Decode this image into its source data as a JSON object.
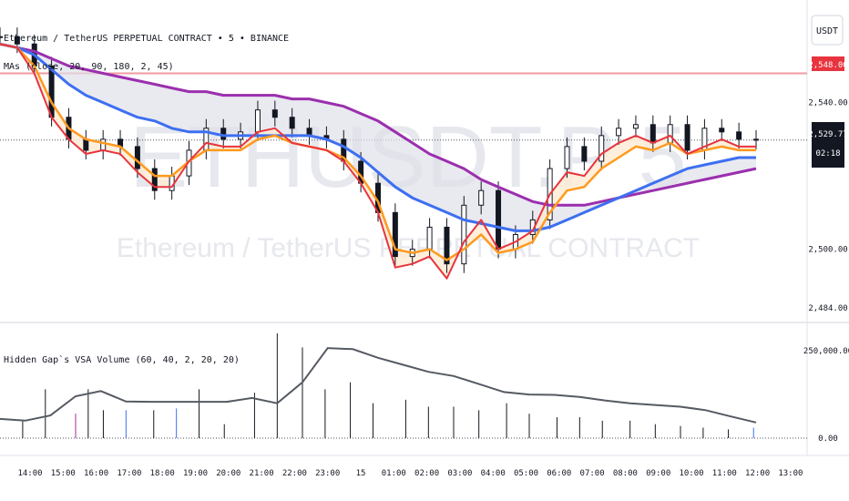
{
  "header": {
    "symbol_line": "Ethereum / TetherUS PERPETUAL CONTRACT • 5 • BINANCE",
    "indicator_line": "MAs (close, 20, 90, 180, 2, 45)",
    "currency_button": "USDT"
  },
  "watermark": {
    "ticker": "ETHUSDT.P 5",
    "name": "Ethereum / TetherUS PERPETUAL CONTRACT"
  },
  "price_badges": {
    "resistance": "2,548.00",
    "last_price": "2,529.77",
    "countdown": "02:18"
  },
  "volume_pane": {
    "title": "Hidden Gap`s VSA Volume (60, 40, 2, 20, 20)"
  },
  "colors": {
    "ma_fast": "#e8343e",
    "ma_mid": "#ff9a1f",
    "ma_slow": "#3d6ff0",
    "ma_long": "#9b2fae",
    "resistance_line": "#f29aa0",
    "volume_ma": "#555a63",
    "candle": "#131722"
  },
  "chart_data": [
    {
      "type": "line",
      "name": "price-pane",
      "x": [
        "13:45",
        "14:00",
        "14:30",
        "15:00",
        "15:30",
        "16:00",
        "16:30",
        "17:00",
        "17:30",
        "18:00",
        "18:30",
        "19:00",
        "19:30",
        "20:00",
        "20:30",
        "21:00",
        "21:30",
        "22:00",
        "22:30",
        "23:00",
        "23:30",
        "00:00",
        "00:30",
        "01:00",
        "01:30",
        "02:00",
        "02:30",
        "03:00",
        "03:30",
        "04:00",
        "04:30",
        "05:00",
        "05:30",
        "06:00",
        "06:30",
        "07:00",
        "07:30",
        "08:00",
        "08:30",
        "09:00",
        "09:30",
        "10:00",
        "10:30",
        "11:00",
        "11:30"
      ],
      "series": [
        {
          "key": "close",
          "values": [
            2558,
            2556,
            2550,
            2536,
            2530,
            2527,
            2530,
            2528,
            2522,
            2516,
            2520,
            2527,
            2533,
            2530,
            2532,
            2538,
            2536,
            2533,
            2531,
            2530,
            2524,
            2518,
            2510,
            2498,
            2500,
            2506,
            2496,
            2512,
            2516,
            2500,
            2504,
            2508,
            2522,
            2528,
            2524,
            2531,
            2533,
            2534,
            2529,
            2534,
            2527,
            2533,
            2532,
            2530,
            2529.77
          ]
        },
        {
          "key": "ma_fast",
          "values": [
            2556,
            2555,
            2548,
            2536,
            2530,
            2526,
            2527,
            2526,
            2521,
            2517,
            2517,
            2524,
            2529,
            2528,
            2528,
            2532,
            2533,
            2529,
            2528,
            2527,
            2524,
            2518,
            2510,
            2495,
            2496,
            2498,
            2492,
            2502,
            2508,
            2500,
            2502,
            2505,
            2515,
            2521,
            2520,
            2526,
            2529,
            2531,
            2529,
            2531,
            2526,
            2528,
            2530,
            2528,
            2528
          ]
        },
        {
          "key": "ma_mid",
          "values": [
            2556,
            2555,
            2550,
            2540,
            2533,
            2530,
            2529,
            2528,
            2524,
            2520,
            2520,
            2524,
            2527,
            2527,
            2527,
            2530,
            2531,
            2529,
            2528,
            2527,
            2525,
            2520,
            2513,
            2500,
            2499,
            2500,
            2497,
            2500,
            2504,
            2499,
            2500,
            2502,
            2510,
            2516,
            2517,
            2522,
            2525,
            2528,
            2527,
            2529,
            2526,
            2527,
            2528,
            2527,
            2527
          ]
        },
        {
          "key": "ma_slow",
          "values": [
            2556,
            2555,
            2553,
            2549,
            2545,
            2542,
            2540,
            2538,
            2536,
            2535,
            2533,
            2532,
            2532,
            2531,
            2531,
            2531,
            2531,
            2531,
            2531,
            2530,
            2528,
            2525,
            2521,
            2517,
            2514,
            2512,
            2510,
            2508,
            2507,
            2506,
            2505,
            2505,
            2506,
            2508,
            2510,
            2512,
            2514,
            2516,
            2518,
            2520,
            2522,
            2523,
            2524,
            2525,
            2525
          ]
        },
        {
          "key": "ma_long",
          "values": [
            2556,
            2555,
            2554,
            2552,
            2550,
            2549,
            2548,
            2547,
            2546,
            2545,
            2544,
            2543,
            2543,
            2542,
            2542,
            2542,
            2542,
            2541,
            2541,
            2540,
            2539,
            2537,
            2535,
            2532,
            2529,
            2526,
            2524,
            2522,
            2519,
            2517,
            2515,
            2513,
            2512,
            2512,
            2512,
            2513,
            2514,
            2515,
            2516,
            2517,
            2518,
            2519,
            2520,
            2521,
            2522
          ]
        }
      ],
      "resistance": 2548,
      "ylim": [
        2481,
        2568
      ],
      "y_ticks": [
        "2,540.00",
        "2,500.00",
        "2,484.00"
      ],
      "x_ticks": [
        "14:00",
        "15:00",
        "16:00",
        "17:00",
        "18:00",
        "19:00",
        "20:00",
        "21:00",
        "22:00",
        "23:00",
        "15",
        "01:00",
        "02:00",
        "03:00",
        "04:00",
        "05:00",
        "06:00",
        "07:00",
        "08:00",
        "09:00",
        "10:00",
        "11:00",
        "12:00",
        "13:00"
      ]
    },
    {
      "type": "bar",
      "name": "volume-pane",
      "y_ticks": [
        "250,000.00",
        "0.00"
      ],
      "ylim": [
        0,
        300000
      ],
      "volume_ma": [
        [
          0,
          55000
        ],
        [
          1,
          50000
        ],
        [
          2,
          65000
        ],
        [
          3,
          120000
        ],
        [
          4,
          135000
        ],
        [
          5,
          105000
        ],
        [
          6,
          104000
        ],
        [
          7,
          104000
        ],
        [
          8,
          104000
        ],
        [
          9,
          104000
        ],
        [
          10,
          115000
        ],
        [
          11,
          100000
        ],
        [
          12,
          160000
        ],
        [
          13,
          258000
        ],
        [
          14,
          255000
        ],
        [
          15,
          230000
        ],
        [
          16,
          210000
        ],
        [
          17,
          190000
        ],
        [
          18,
          178000
        ],
        [
          19,
          155000
        ],
        [
          20,
          132000
        ],
        [
          21,
          125000
        ],
        [
          22,
          124000
        ],
        [
          23,
          118000
        ],
        [
          24,
          108000
        ],
        [
          25,
          100000
        ],
        [
          26,
          95000
        ],
        [
          27,
          90000
        ],
        [
          28,
          80000
        ],
        [
          29,
          62000
        ],
        [
          30,
          45000
        ]
      ],
      "spikes": [
        {
          "at": 0.9,
          "value": 48000,
          "color": "#131722"
        },
        {
          "at": 1.8,
          "value": 140000,
          "color": "#131722"
        },
        {
          "at": 3.0,
          "value": 70000,
          "color": "#a12c9a"
        },
        {
          "at": 3.5,
          "value": 140000,
          "color": "#131722"
        },
        {
          "at": 4.1,
          "value": 80000,
          "color": "#131722"
        },
        {
          "at": 5.0,
          "value": 80000,
          "color": "#3d6ff0"
        },
        {
          "at": 6.1,
          "value": 80000,
          "color": "#131722"
        },
        {
          "at": 7.0,
          "value": 85000,
          "color": "#3d6ff0"
        },
        {
          "at": 7.9,
          "value": 140000,
          "color": "#131722"
        },
        {
          "at": 8.9,
          "value": 40000,
          "color": "#131722"
        },
        {
          "at": 10.1,
          "value": 130000,
          "color": "#131722"
        },
        {
          "at": 11.0,
          "value": 300000,
          "color": "#131722"
        },
        {
          "at": 12.0,
          "value": 260000,
          "color": "#131722"
        },
        {
          "at": 12.9,
          "value": 140000,
          "color": "#131722"
        },
        {
          "at": 13.9,
          "value": 160000,
          "color": "#131722"
        },
        {
          "at": 14.8,
          "value": 100000,
          "color": "#131722"
        },
        {
          "at": 16.1,
          "value": 110000,
          "color": "#131722"
        },
        {
          "at": 17.0,
          "value": 90000,
          "color": "#131722"
        },
        {
          "at": 18.0,
          "value": 90000,
          "color": "#131722"
        },
        {
          "at": 19.0,
          "value": 80000,
          "color": "#131722"
        },
        {
          "at": 20.1,
          "value": 100000,
          "color": "#131722"
        },
        {
          "at": 21.0,
          "value": 70000,
          "color": "#131722"
        },
        {
          "at": 22.1,
          "value": 60000,
          "color": "#131722"
        },
        {
          "at": 23.0,
          "value": 60000,
          "color": "#131722"
        },
        {
          "at": 23.9,
          "value": 50000,
          "color": "#131722"
        },
        {
          "at": 25.0,
          "value": 50000,
          "color": "#131722"
        },
        {
          "at": 26.0,
          "value": 40000,
          "color": "#131722"
        },
        {
          "at": 27.0,
          "value": 35000,
          "color": "#131722"
        },
        {
          "at": 27.9,
          "value": 30000,
          "color": "#131722"
        },
        {
          "at": 28.9,
          "value": 25000,
          "color": "#131722"
        },
        {
          "at": 29.9,
          "value": 30000,
          "color": "#3d6ff0"
        }
      ]
    }
  ]
}
